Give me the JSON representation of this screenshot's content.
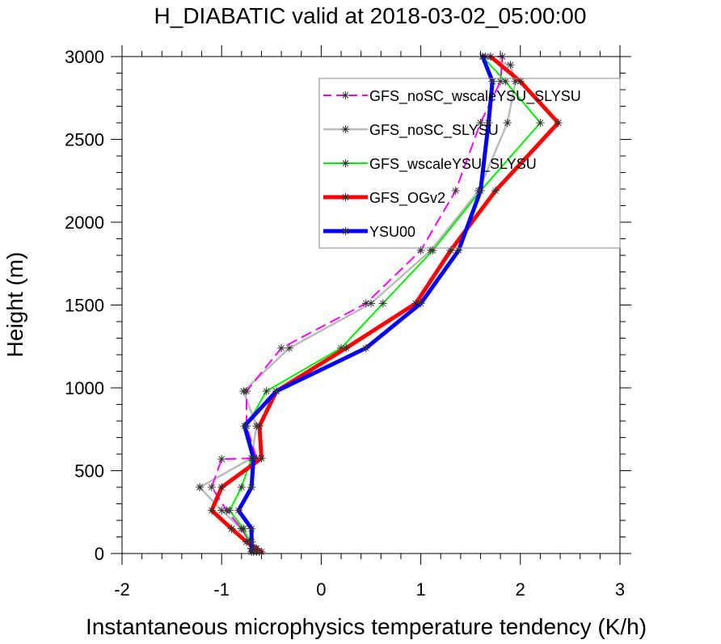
{
  "chart_data": {
    "type": "line",
    "title": "H_DIABATIC valid at 2018-03-02_05:00:00",
    "xlabel": "Instantaneous microphysics temperature tendency (K/h)",
    "ylabel": "Height (m)",
    "xlim": [
      -2,
      3
    ],
    "ylim": [
      0,
      3000
    ],
    "x_ticks": [
      -2,
      -1,
      0,
      1,
      2,
      3
    ],
    "x_tick_labels": [
      "-2",
      "-1",
      "0",
      "1",
      "2",
      "3"
    ],
    "y_ticks": [
      0,
      500,
      1000,
      1500,
      2000,
      2500,
      3000
    ],
    "y_tick_labels": [
      "0",
      "500",
      "1000",
      "1500",
      "2000",
      "2500",
      "3000"
    ],
    "grid": false,
    "legend_position": "top-right",
    "series": [
      {
        "name": "GFS_noSC_wscaleYSU_SLYSU",
        "color": "#ff00ff",
        "dash": true,
        "width": 2,
        "x": [
          -0.65,
          -0.68,
          -0.72,
          -0.8,
          -0.95,
          -1.1,
          -1.0,
          -0.65,
          -0.75,
          -0.75,
          -0.4,
          0.45,
          1.0,
          1.35,
          1.6,
          1.8,
          1.82,
          1.65
        ],
        "y": [
          10,
          30,
          70,
          150,
          260,
          400,
          570,
          575,
          770,
          980,
          1240,
          1510,
          1830,
          2190,
          2600,
          2850,
          3000,
          3000
        ]
      },
      {
        "name": "GFS_noSC_SLYSU",
        "color": "#bbbbbb",
        "dash": false,
        "width": 2.5,
        "x": [
          -0.62,
          -0.66,
          -0.7,
          -0.8,
          -1.0,
          -1.22,
          -1.22,
          -0.7,
          -0.65,
          -0.78,
          -0.32,
          0.5,
          1.1,
          1.58,
          1.87,
          1.95,
          1.9,
          1.62
        ],
        "y": [
          10,
          30,
          70,
          150,
          260,
          400,
          400,
          575,
          770,
          980,
          1240,
          1510,
          1830,
          2190,
          2600,
          2850,
          2950,
          3000
        ]
      },
      {
        "name": "GFS_wscaleYSU_SLYSU",
        "color": "#00ee00",
        "dash": false,
        "width": 2,
        "x": [
          -0.68,
          -0.7,
          -0.72,
          -0.78,
          -0.92,
          -0.8,
          -0.7,
          -0.75,
          -0.55,
          0.2,
          0.62,
          1.12,
          1.6,
          2.2,
          1.85,
          1.62
        ],
        "y": [
          10,
          30,
          70,
          150,
          260,
          400,
          575,
          770,
          980,
          1240,
          1510,
          1830,
          2190,
          2600,
          2850,
          3000
        ]
      },
      {
        "name": "GFS_OGv2",
        "color": "#ff0000",
        "dash": false,
        "width": 5,
        "x": [
          -0.6,
          -0.65,
          -0.75,
          -0.9,
          -1.1,
          -1.0,
          -0.6,
          -0.62,
          -0.45,
          0.25,
          0.95,
          1.3,
          1.75,
          2.38,
          2.0,
          1.7
        ],
        "y": [
          10,
          30,
          70,
          150,
          260,
          400,
          575,
          770,
          980,
          1240,
          1510,
          1830,
          2190,
          2600,
          2850,
          3000
        ]
      },
      {
        "name": "YSU00",
        "color": "#0000ff",
        "dash": false,
        "width": 5,
        "x": [
          -0.7,
          -0.7,
          -0.7,
          -0.7,
          -0.83,
          -0.7,
          -0.68,
          -0.77,
          -0.45,
          0.45,
          1.0,
          1.38,
          1.6,
          1.68,
          1.72,
          1.62
        ],
        "y": [
          10,
          30,
          70,
          150,
          260,
          400,
          575,
          770,
          980,
          1240,
          1510,
          1830,
          2190,
          2600,
          2850,
          3000
        ]
      }
    ]
  }
}
